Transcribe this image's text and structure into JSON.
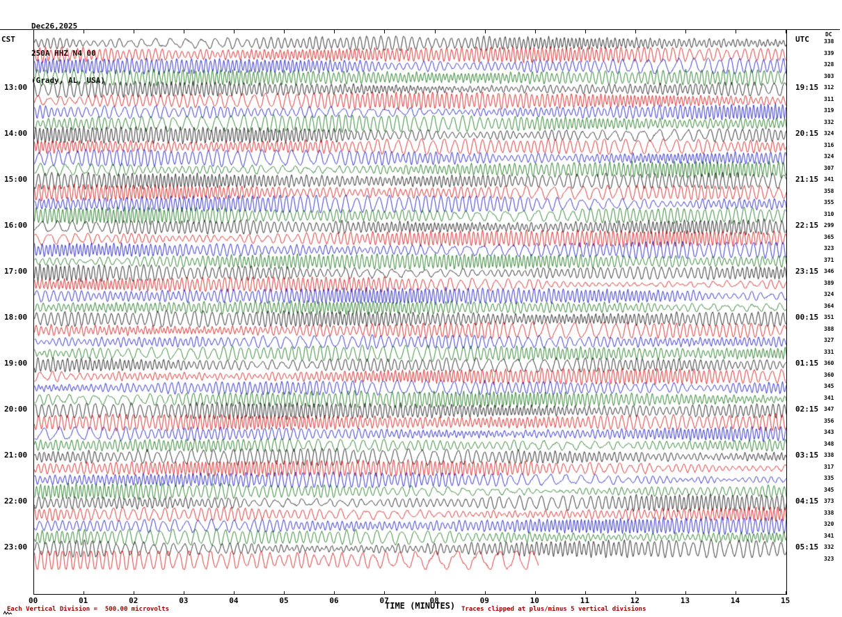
{
  "header": {
    "date": "Dec26,2025",
    "station": "250A HHZ N4 00",
    "location": "(Grady, AL, USA)"
  },
  "axes": {
    "left_title": "CST",
    "right_title": "UTC",
    "dc_title": "DC",
    "x_title": "TIME (MINUTES)",
    "x_ticks": [
      "00",
      "01",
      "02",
      "03",
      "04",
      "05",
      "06",
      "07",
      "08",
      "09",
      "10",
      "11",
      "12",
      "13",
      "14",
      "15"
    ]
  },
  "footer": {
    "scale_note": "Each Vertical Division =  500.00 microvolts",
    "clip_note": "Traces clipped at plus/minus 5 vertical divisions"
  },
  "chart_data": {
    "type": "line",
    "kind": "seismogram-helicorder",
    "minutes_per_row": 15,
    "row_count": 46,
    "legend_position": "none",
    "grid": false,
    "trace_colors": [
      "#000000",
      "#cc0000",
      "#0000bb",
      "#006600"
    ],
    "color_cycle": [
      "black",
      "red",
      "blue",
      "green"
    ],
    "waveform_note": "continuous high-amplitude microseismic noise; traces clipped at plus/minus 5 vertical divisions; individual wiggles not resolvable at this scale",
    "rows": [
      {
        "dc": 338
      },
      {
        "dc": 339
      },
      {
        "dc": 328
      },
      {
        "dc": 303
      },
      {
        "cst": "13:00",
        "utc": "19:15",
        "dc": 312
      },
      {
        "dc": 311
      },
      {
        "dc": 319
      },
      {
        "dc": 332
      },
      {
        "cst": "14:00",
        "utc": "20:15",
        "dc": 324
      },
      {
        "dc": 316
      },
      {
        "dc": 324
      },
      {
        "dc": 307
      },
      {
        "cst": "15:00",
        "utc": "21:15",
        "dc": 341
      },
      {
        "dc": 358
      },
      {
        "dc": 355
      },
      {
        "dc": 310
      },
      {
        "cst": "16:00",
        "utc": "22:15",
        "dc": 299
      },
      {
        "dc": 365
      },
      {
        "dc": 323
      },
      {
        "dc": 371
      },
      {
        "cst": "17:00",
        "utc": "23:15",
        "dc": 346
      },
      {
        "dc": 389
      },
      {
        "dc": 324
      },
      {
        "dc": 364
      },
      {
        "cst": "18:00",
        "utc": "00:15",
        "dc": 351
      },
      {
        "dc": 388
      },
      {
        "dc": 327
      },
      {
        "dc": 331
      },
      {
        "cst": "19:00",
        "utc": "01:15",
        "dc": 360
      },
      {
        "dc": 360
      },
      {
        "dc": 345
      },
      {
        "dc": 341
      },
      {
        "cst": "20:00",
        "utc": "02:15",
        "dc": 347
      },
      {
        "dc": 356
      },
      {
        "dc": 343
      },
      {
        "dc": 348
      },
      {
        "cst": "21:00",
        "utc": "03:15",
        "dc": 338
      },
      {
        "dc": 317
      },
      {
        "dc": 335
      },
      {
        "dc": 345
      },
      {
        "cst": "22:00",
        "utc": "04:15",
        "dc": 373
      },
      {
        "dc": 338
      },
      {
        "dc": 320
      },
      {
        "dc": 341
      },
      {
        "cst": "23:00",
        "utc": "05:15",
        "dc": 332,
        "amp_scale": 1.2,
        "freq_scale": 0.8
      },
      {
        "dc": 323,
        "amp_scale": 1.5,
        "freq_scale": 0.5,
        "end_fraction": 0.67
      }
    ]
  }
}
